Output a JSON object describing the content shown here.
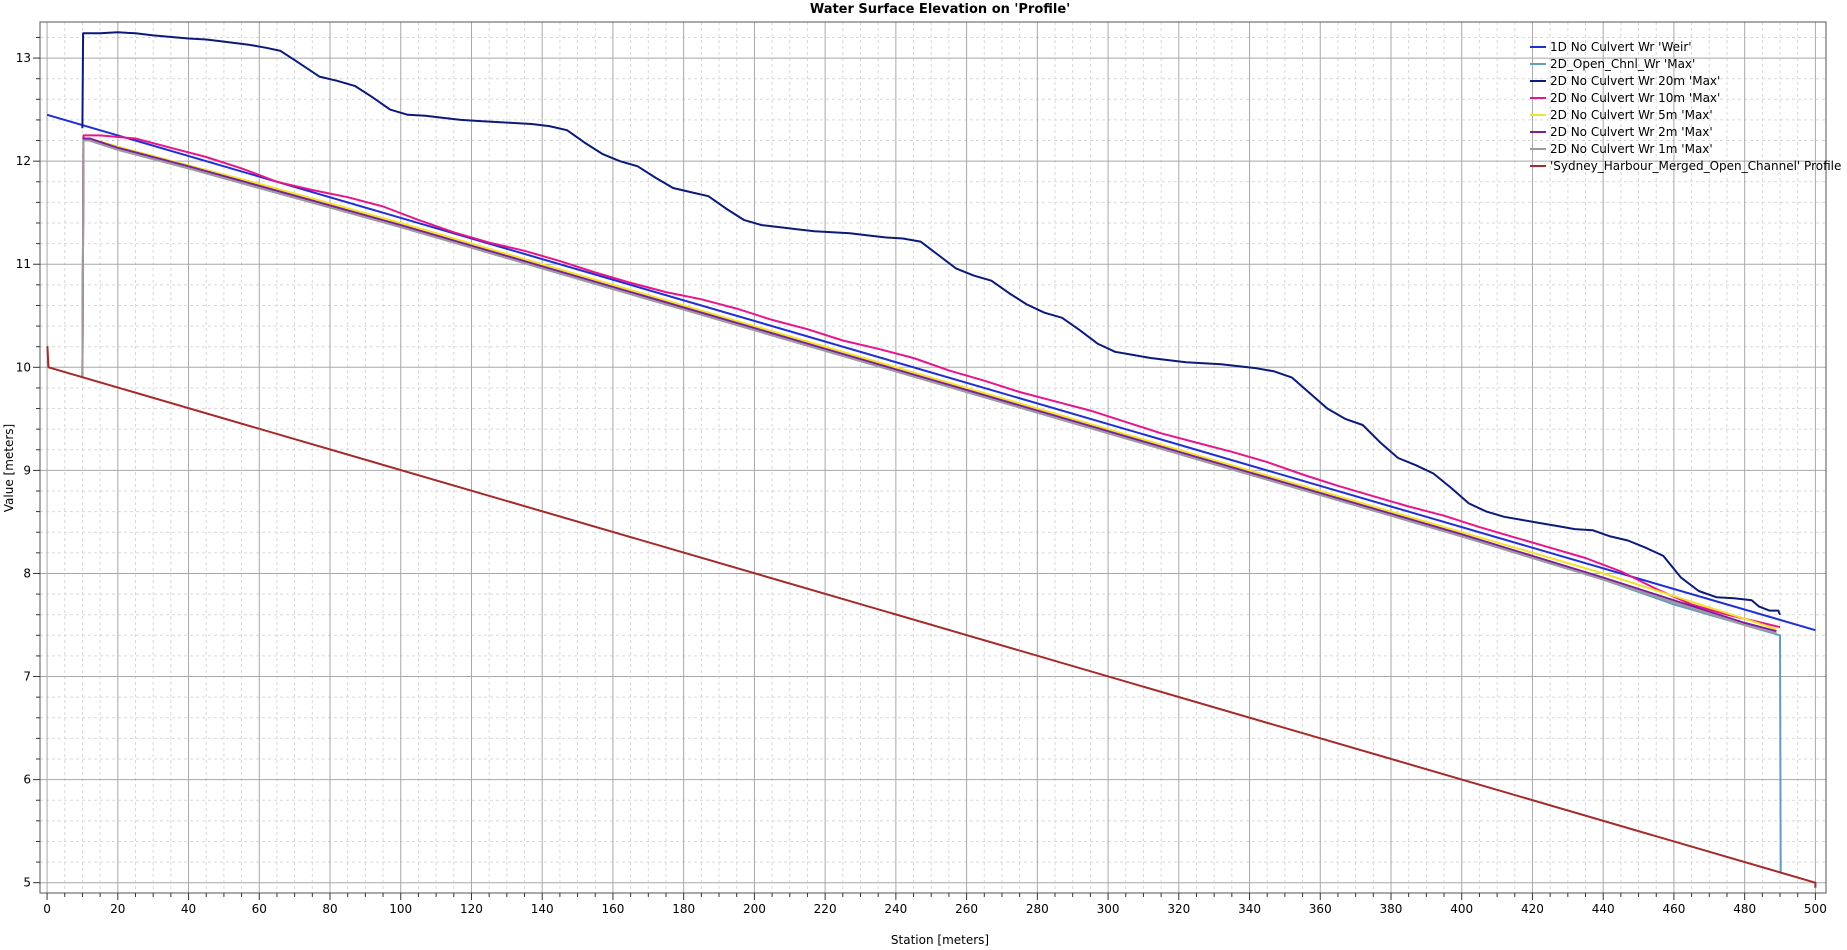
{
  "chart_data": {
    "type": "line",
    "title": "Water Surface Elevation on 'Profile'",
    "xlabel": "Station [meters]",
    "ylabel": "Value [meters]",
    "xlim": [
      -2,
      503
    ],
    "ylim": [
      4.9,
      13.35
    ],
    "xticks": [
      0,
      20,
      40,
      60,
      80,
      100,
      120,
      140,
      160,
      180,
      200,
      220,
      240,
      260,
      280,
      300,
      320,
      340,
      360,
      380,
      400,
      420,
      440,
      460,
      480,
      500
    ],
    "yticks": [
      5,
      6,
      7,
      8,
      9,
      10,
      11,
      12,
      13
    ],
    "grid": true,
    "legend_position": "top-right",
    "series": [
      {
        "name": "1D No Culvert Wr 'Weir'",
        "color": "#1f2fd6",
        "x": [
          0,
          500
        ],
        "y": [
          12.45,
          7.45
        ]
      },
      {
        "name": "2D_Open_Chnl_Wr 'Max'",
        "color": "#5f9ebd",
        "x": [
          10,
          10.3,
          12,
          20,
          40,
          60,
          80,
          100,
          120,
          140,
          160,
          180,
          200,
          220,
          240,
          260,
          280,
          300,
          320,
          340,
          360,
          380,
          400,
          420,
          440,
          460,
          480,
          490,
          490.2
        ],
        "y": [
          9.9,
          12.2,
          12.2,
          12.11,
          11.93,
          11.74,
          11.55,
          11.36,
          11.16,
          10.96,
          10.76,
          10.56,
          10.36,
          10.16,
          9.96,
          9.76,
          9.56,
          9.36,
          9.16,
          8.96,
          8.76,
          8.56,
          8.36,
          8.15,
          7.94,
          7.7,
          7.5,
          7.4,
          5.1
        ]
      },
      {
        "name": "2D No Culvert Wr 20m 'Max'",
        "color": "#0b1a7a",
        "x": [
          10,
          10.2,
          15,
          20,
          25,
          30,
          40,
          45,
          50,
          57,
          62,
          66,
          70,
          77,
          82,
          87,
          92,
          97,
          102,
          107,
          112,
          117,
          122,
          127,
          132,
          137,
          142,
          147,
          152,
          157,
          162,
          167,
          172,
          177,
          182,
          187,
          192,
          197,
          202,
          207,
          212,
          217,
          222,
          227,
          232,
          237,
          242,
          247,
          252,
          257,
          262,
          267,
          272,
          277,
          282,
          287,
          292,
          297,
          302,
          307,
          312,
          317,
          322,
          327,
          332,
          337,
          342,
          347,
          352,
          357,
          362,
          367,
          372,
          377,
          382,
          387,
          392,
          397,
          402,
          407,
          412,
          417,
          422,
          427,
          432,
          437,
          442,
          447,
          452,
          457,
          462,
          467,
          472,
          477,
          482,
          484,
          487,
          488.5,
          489.5,
          490
        ],
        "y": [
          12.32,
          13.24,
          13.24,
          13.25,
          13.24,
          13.22,
          13.19,
          13.18,
          13.16,
          13.13,
          13.1,
          13.07,
          12.98,
          12.82,
          12.78,
          12.73,
          12.62,
          12.5,
          12.45,
          12.44,
          12.42,
          12.4,
          12.39,
          12.38,
          12.37,
          12.36,
          12.34,
          12.3,
          12.18,
          12.07,
          12.0,
          11.95,
          11.84,
          11.74,
          11.7,
          11.66,
          11.54,
          11.43,
          11.38,
          11.36,
          11.34,
          11.32,
          11.31,
          11.3,
          11.28,
          11.26,
          11.25,
          11.22,
          11.09,
          10.96,
          10.89,
          10.84,
          10.72,
          10.61,
          10.53,
          10.48,
          10.36,
          10.23,
          10.15,
          10.12,
          10.09,
          10.07,
          10.05,
          10.04,
          10.03,
          10.01,
          9.99,
          9.96,
          9.9,
          9.75,
          9.6,
          9.5,
          9.44,
          9.27,
          9.12,
          9.05,
          8.97,
          8.83,
          8.68,
          8.6,
          8.55,
          8.52,
          8.49,
          8.46,
          8.43,
          8.42,
          8.36,
          8.32,
          8.25,
          8.17,
          7.96,
          7.83,
          7.77,
          7.76,
          7.74,
          7.68,
          7.64,
          7.64,
          7.64,
          7.6
        ]
      },
      {
        "name": "2D No Culvert Wr 10m 'Max'",
        "color": "#e8148c",
        "x": [
          10,
          10.3,
          15,
          25,
          35,
          45,
          55,
          65,
          75,
          85,
          95,
          105,
          115,
          125,
          135,
          145,
          155,
          165,
          175,
          185,
          195,
          205,
          215,
          225,
          235,
          245,
          255,
          265,
          275,
          285,
          295,
          305,
          315,
          325,
          335,
          345,
          355,
          365,
          375,
          385,
          395,
          405,
          415,
          425,
          435,
          445,
          455,
          465,
          475,
          485,
          490
        ],
        "y": [
          9.9,
          12.25,
          12.25,
          12.22,
          12.13,
          12.04,
          11.93,
          11.8,
          11.72,
          11.65,
          11.56,
          11.43,
          11.31,
          11.21,
          11.13,
          11.03,
          10.92,
          10.82,
          10.73,
          10.66,
          10.57,
          10.46,
          10.37,
          10.26,
          10.18,
          10.09,
          9.97,
          9.87,
          9.76,
          9.67,
          9.58,
          9.47,
          9.36,
          9.27,
          9.18,
          9.08,
          8.96,
          8.85,
          8.75,
          8.65,
          8.56,
          8.45,
          8.35,
          8.25,
          8.15,
          8.02,
          7.85,
          7.7,
          7.6,
          7.52,
          7.48
        ]
      },
      {
        "name": "2D No Culvert Wr 5m 'Max'",
        "color": "#f2e22a",
        "x": [
          10,
          10.3,
          12,
          20,
          40,
          60,
          80,
          100,
          120,
          140,
          160,
          180,
          200,
          220,
          240,
          260,
          280,
          300,
          320,
          340,
          360,
          380,
          400,
          420,
          440,
          460,
          480,
          489
        ],
        "y": [
          9.9,
          12.22,
          12.22,
          12.14,
          11.96,
          11.78,
          11.59,
          11.4,
          11.2,
          11.0,
          10.8,
          10.6,
          10.4,
          10.2,
          10.0,
          9.8,
          9.6,
          9.4,
          9.2,
          9.0,
          8.8,
          8.6,
          8.4,
          8.2,
          8.0,
          7.78,
          7.56,
          7.46
        ]
      },
      {
        "name": "2D No Culvert Wr 2m 'Max'",
        "color": "#7a1f9a",
        "x": [
          10,
          10.3,
          12,
          20,
          40,
          60,
          80,
          100,
          120,
          140,
          160,
          180,
          200,
          220,
          240,
          260,
          280,
          300,
          320,
          340,
          360,
          380,
          400,
          420,
          440,
          460,
          480,
          489
        ],
        "y": [
          9.9,
          12.22,
          12.22,
          12.13,
          11.95,
          11.76,
          11.57,
          11.38,
          11.18,
          10.98,
          10.78,
          10.58,
          10.38,
          10.18,
          9.98,
          9.78,
          9.58,
          9.38,
          9.18,
          8.98,
          8.78,
          8.58,
          8.38,
          8.17,
          7.96,
          7.74,
          7.52,
          7.44
        ]
      },
      {
        "name": "2D No Culvert Wr 1m 'Max'",
        "color": "#a09aa0",
        "x": [
          10,
          10.3,
          12,
          20,
          40,
          60,
          80,
          100,
          120,
          140,
          160,
          180,
          200,
          220,
          240,
          260,
          280,
          300,
          320,
          340,
          360,
          380,
          400,
          420,
          440,
          460,
          480,
          489
        ],
        "y": [
          9.9,
          12.2,
          12.2,
          12.11,
          11.93,
          11.74,
          11.55,
          11.36,
          11.16,
          10.96,
          10.76,
          10.56,
          10.36,
          10.16,
          9.96,
          9.76,
          9.56,
          9.36,
          9.16,
          8.96,
          8.76,
          8.56,
          8.36,
          8.15,
          7.94,
          7.72,
          7.5,
          7.42
        ]
      },
      {
        "name": "'Sydney_Harbour_Merged_Open_Channel' Profile",
        "color": "#a52a2a",
        "x": [
          0,
          0.1,
          0.4,
          500,
          500
        ],
        "y": [
          10.2,
          10.2,
          10.0,
          5.0,
          4.95
        ]
      }
    ]
  }
}
